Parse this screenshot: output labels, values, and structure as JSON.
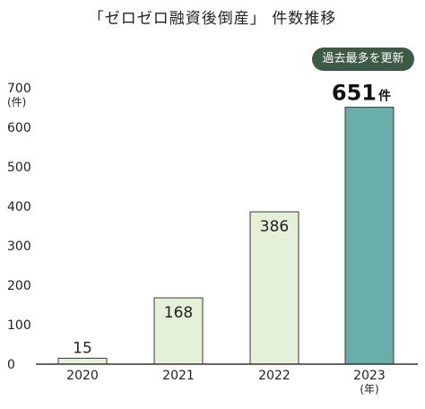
{
  "title": "「ゼロゼロ融資後倒産」 件数推移",
  "badge": "過去最多を更新",
  "chart_data": {
    "type": "bar",
    "title": "「ゼロゼロ融資後倒産」 件数推移",
    "categories": [
      "2020",
      "2021",
      "2022",
      "2023"
    ],
    "values": [
      15,
      168,
      386,
      651
    ],
    "data_labels": [
      "15",
      "168",
      "386",
      "651"
    ],
    "highlight_suffix": "件",
    "y_unit": "(件)",
    "x_unit": "(年)",
    "ylim": [
      0,
      700
    ],
    "yticks": [
      0,
      100,
      200,
      300,
      400,
      500,
      600,
      700
    ],
    "grid": false,
    "colors": {
      "normal": "#e5f0d8",
      "highlight": "#6aaeaa",
      "stroke": "#3a3a3a"
    }
  }
}
